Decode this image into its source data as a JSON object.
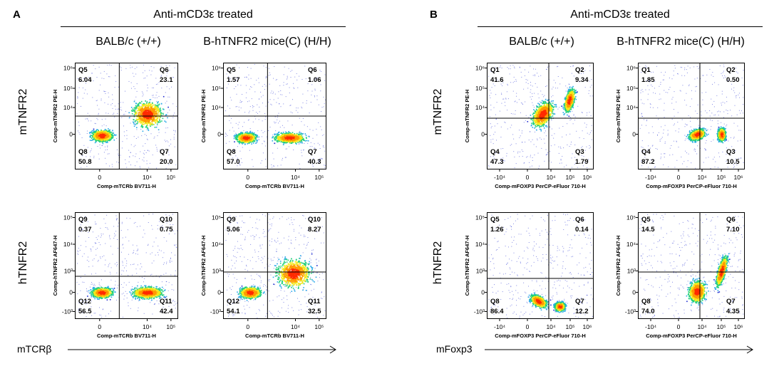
{
  "panels": [
    {
      "letter": "A",
      "title": "Anti-mCD3ε treated",
      "columns": [
        "BALB/c (+/+)",
        "B-hTNFR2 mice(C) (H/H)"
      ],
      "rows": [
        "mTNFR2",
        "hTNFR2"
      ],
      "x_axis_label": "mTCRβ"
    },
    {
      "letter": "B",
      "title": "Anti-mCD3ε treated",
      "columns": [
        "BALB/c (+/+)",
        "B-hTNFR2 mice(C) (H/H)"
      ],
      "rows": [
        "mTNFR2",
        "hTNFR2"
      ],
      "x_axis_label": "mFoxp3"
    }
  ],
  "colors": {
    "density_low": "#1f2bd0",
    "density_mid": "#22d07a",
    "density_high": "#ff2a00",
    "gate_line": "#000000"
  },
  "chart_data": [
    {
      "type": "scatter",
      "panel": "A",
      "column": "BALB/c (+/+)",
      "row": "mTNFR2",
      "xlabel": "Comp-mTCRb BV711-H",
      "ylabel": "Comp-mTNFR2 PE-H",
      "xticks": [
        "0",
        "10⁴",
        "10⁵"
      ],
      "yticks": [
        "10⁶",
        "10⁵",
        "10⁴",
        "0"
      ],
      "quadrants": [
        {
          "name": "Q5",
          "value": "6.04",
          "pos": "top-left"
        },
        {
          "name": "Q6",
          "value": "23.1",
          "pos": "top-right"
        },
        {
          "name": "Q8",
          "value": "50.8",
          "pos": "bottom-left"
        },
        {
          "name": "Q7",
          "value": "20.0",
          "pos": "bottom-right"
        }
      ]
    },
    {
      "type": "scatter",
      "panel": "A",
      "column": "B-hTNFR2 mice(C) (H/H)",
      "row": "mTNFR2",
      "xlabel": "Comp-mTCRb BV711-H",
      "ylabel": "Comp-mTNFR2 PE-H",
      "xticks": [
        "0",
        "10⁴",
        "10⁵"
      ],
      "yticks": [
        "10⁶",
        "10⁵",
        "10⁴",
        "0"
      ],
      "quadrants": [
        {
          "name": "Q5",
          "value": "1.57",
          "pos": "top-left"
        },
        {
          "name": "Q6",
          "value": "1.06",
          "pos": "top-right"
        },
        {
          "name": "Q8",
          "value": "57.0",
          "pos": "bottom-left"
        },
        {
          "name": "Q7",
          "value": "40.3",
          "pos": "bottom-right"
        }
      ]
    },
    {
      "type": "scatter",
      "panel": "A",
      "column": "BALB/c (+/+)",
      "row": "hTNFR2",
      "xlabel": "Comp-mTCRb BV711-H",
      "ylabel": "Comp-hTNFR2 AF647-H",
      "xticks": [
        "0",
        "10⁴",
        "10⁵"
      ],
      "yticks": [
        "10⁵",
        "10⁴",
        "10³",
        "0",
        "-10³"
      ],
      "quadrants": [
        {
          "name": "Q9",
          "value": "0.37",
          "pos": "top-left"
        },
        {
          "name": "Q10",
          "value": "0.75",
          "pos": "top-right"
        },
        {
          "name": "Q12",
          "value": "56.5",
          "pos": "bottom-left"
        },
        {
          "name": "Q11",
          "value": "42.4",
          "pos": "bottom-right"
        }
      ]
    },
    {
      "type": "scatter",
      "panel": "A",
      "column": "B-hTNFR2 mice(C) (H/H)",
      "row": "hTNFR2",
      "xlabel": "Comp-mTCRb BV711-H",
      "ylabel": "Comp-hTNFR2 AF647-H",
      "xticks": [
        "0",
        "10⁴",
        "10⁵"
      ],
      "yticks": [
        "10⁵",
        "10⁴",
        "10³",
        "0",
        "-10³"
      ],
      "quadrants": [
        {
          "name": "Q9",
          "value": "5.06",
          "pos": "top-left"
        },
        {
          "name": "Q10",
          "value": "8.27",
          "pos": "top-right"
        },
        {
          "name": "Q12",
          "value": "54.1",
          "pos": "bottom-left"
        },
        {
          "name": "Q11",
          "value": "32.5",
          "pos": "bottom-right"
        }
      ]
    },
    {
      "type": "scatter",
      "panel": "B",
      "column": "BALB/c (+/+)",
      "row": "mTNFR2",
      "xlabel": "Comp-mFOXP3 PerCP-eFluor 710-H",
      "ylabel": "Comp-mTNFR2 PE-H",
      "xticks": [
        "-10⁴",
        "0",
        "10⁴",
        "10⁵",
        "10⁶"
      ],
      "yticks": [
        "10⁶",
        "10⁵",
        "10⁴",
        "0"
      ],
      "quadrants": [
        {
          "name": "Q1",
          "value": "41.6",
          "pos": "top-left"
        },
        {
          "name": "Q2",
          "value": "9.34",
          "pos": "top-right"
        },
        {
          "name": "Q4",
          "value": "47.3",
          "pos": "bottom-left"
        },
        {
          "name": "Q3",
          "value": "1.79",
          "pos": "bottom-right"
        }
      ]
    },
    {
      "type": "scatter",
      "panel": "B",
      "column": "B-hTNFR2 mice(C) (H/H)",
      "row": "mTNFR2",
      "xlabel": "Comp-mFOXP3 PerCP-eFluor 710-H",
      "ylabel": "Comp-mTNFR2 PE-H",
      "xticks": [
        "-10⁴",
        "0",
        "10⁴",
        "10⁵",
        "10⁶"
      ],
      "yticks": [
        "10⁶",
        "10⁵",
        "10⁴",
        "0"
      ],
      "quadrants": [
        {
          "name": "Q1",
          "value": "1.85",
          "pos": "top-left"
        },
        {
          "name": "Q2",
          "value": "0.50",
          "pos": "top-right"
        },
        {
          "name": "Q4",
          "value": "87.2",
          "pos": "bottom-left"
        },
        {
          "name": "Q3",
          "value": "10.5",
          "pos": "bottom-right"
        }
      ]
    },
    {
      "type": "scatter",
      "panel": "B",
      "column": "BALB/c (+/+)",
      "row": "hTNFR2",
      "xlabel": "Comp-mFOXP3 PerCP-eFluor 710-H",
      "ylabel": "Comp-hTNFR2 AF647-H",
      "xticks": [
        "-10⁴",
        "0",
        "10⁴",
        "10⁵",
        "10⁶"
      ],
      "yticks": [
        "10⁵",
        "10⁴",
        "10³",
        "0",
        "-10³"
      ],
      "quadrants": [
        {
          "name": "Q5",
          "value": "1.26",
          "pos": "top-left"
        },
        {
          "name": "Q6",
          "value": "0.14",
          "pos": "top-right"
        },
        {
          "name": "Q8",
          "value": "86.4",
          "pos": "bottom-left"
        },
        {
          "name": "Q7",
          "value": "12.2",
          "pos": "bottom-right"
        }
      ]
    },
    {
      "type": "scatter",
      "panel": "B",
      "column": "B-hTNFR2 mice(C) (H/H)",
      "row": "hTNFR2",
      "xlabel": "Comp-mFOXP3 PerCP-eFluor 710-H",
      "ylabel": "Comp-hTNFR2 AF647-H",
      "xticks": [
        "-10⁴",
        "0",
        "10⁴",
        "10⁵",
        "10⁶"
      ],
      "yticks": [
        "10⁵",
        "10⁴",
        "10³",
        "0",
        "-10³"
      ],
      "quadrants": [
        {
          "name": "Q5",
          "value": "14.5",
          "pos": "top-left"
        },
        {
          "name": "Q6",
          "value": "7.10",
          "pos": "top-right"
        },
        {
          "name": "Q8",
          "value": "74.0",
          "pos": "bottom-left"
        },
        {
          "name": "Q7",
          "value": "4.35",
          "pos": "bottom-right"
        }
      ]
    }
  ]
}
